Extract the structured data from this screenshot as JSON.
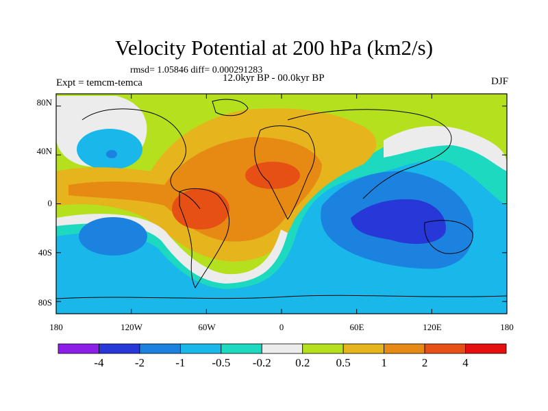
{
  "title": "Velocity Potential at 200 hPa (km2/s)",
  "stats_text": "rmsd= 1.05846 diff= 0.000291283",
  "period_text": "12.0kyr BP - 00.0kyr BP",
  "experiment_text": "Expt = temcm-temca",
  "season": "DJF",
  "lat_labels": [
    "80N",
    "40N",
    "0",
    "40S",
    "80S"
  ],
  "lon_labels": [
    "180",
    "120W",
    "60W",
    "0",
    "60E",
    "120E",
    "180"
  ],
  "colorbar": {
    "colors": [
      "#8c1ee8",
      "#2837d8",
      "#1c82e0",
      "#19b7ea",
      "#1cd9c0",
      "#ececec",
      "#b4e01e",
      "#e6b41c",
      "#e68a14",
      "#e65014",
      "#e60f0f"
    ],
    "labels": [
      "-4",
      "-2",
      "-1",
      "-0.5",
      "-0.2",
      "0.2",
      "0.5",
      "1",
      "2",
      "4"
    ]
  },
  "chart_data": {
    "type": "heatmap",
    "title": "Velocity Potential at 200 hPa (km2/s)",
    "subtitle": "12.0kyr BP - 00.0kyr BP",
    "variable_units": "km2/s",
    "experiment": "temcm-temca",
    "season": "DJF",
    "rmsd": 1.05846,
    "diff": 0.000291283,
    "levels": [
      -4,
      -2,
      -1,
      -0.5,
      -0.2,
      0.2,
      0.5,
      1,
      2,
      4
    ],
    "x_range": [
      -180,
      180
    ],
    "y_range": [
      -90,
      90
    ],
    "x_ticks": [
      -180,
      -120,
      -60,
      0,
      60,
      120,
      180
    ],
    "y_ticks": [
      80,
      40,
      0,
      -40,
      -80
    ],
    "features": [
      {
        "label": "maximum (>2)",
        "lon": -62,
        "lat": -5
      },
      {
        "label": "maximum (>2)",
        "lon": -5,
        "lat": 17
      },
      {
        "label": "minimum (<-2)",
        "lon": 118,
        "lat": -12
      },
      {
        "label": "minimum (-2 to -1)",
        "lon": -155,
        "lat": 38
      },
      {
        "label": "minimum (-1 to -0.5)",
        "lon": -148,
        "lat": -30
      }
    ]
  }
}
